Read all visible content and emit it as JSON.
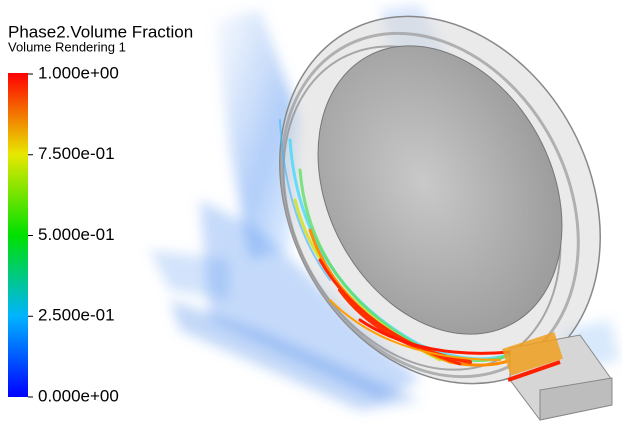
{
  "legend": {
    "title": "Phase2.Volume Fraction",
    "subtitle": "Volume Rendering 1",
    "range": [
      0,
      1
    ],
    "ticks": [
      {
        "value": 1,
        "label": "1.000e+00"
      },
      {
        "value": 0.75,
        "label": "7.500e-01"
      },
      {
        "value": 0.5,
        "label": "5.000e-01"
      },
      {
        "value": 0.25,
        "label": "2.500e-01"
      },
      {
        "value": 0,
        "label": "0.000e+00"
      }
    ]
  }
}
